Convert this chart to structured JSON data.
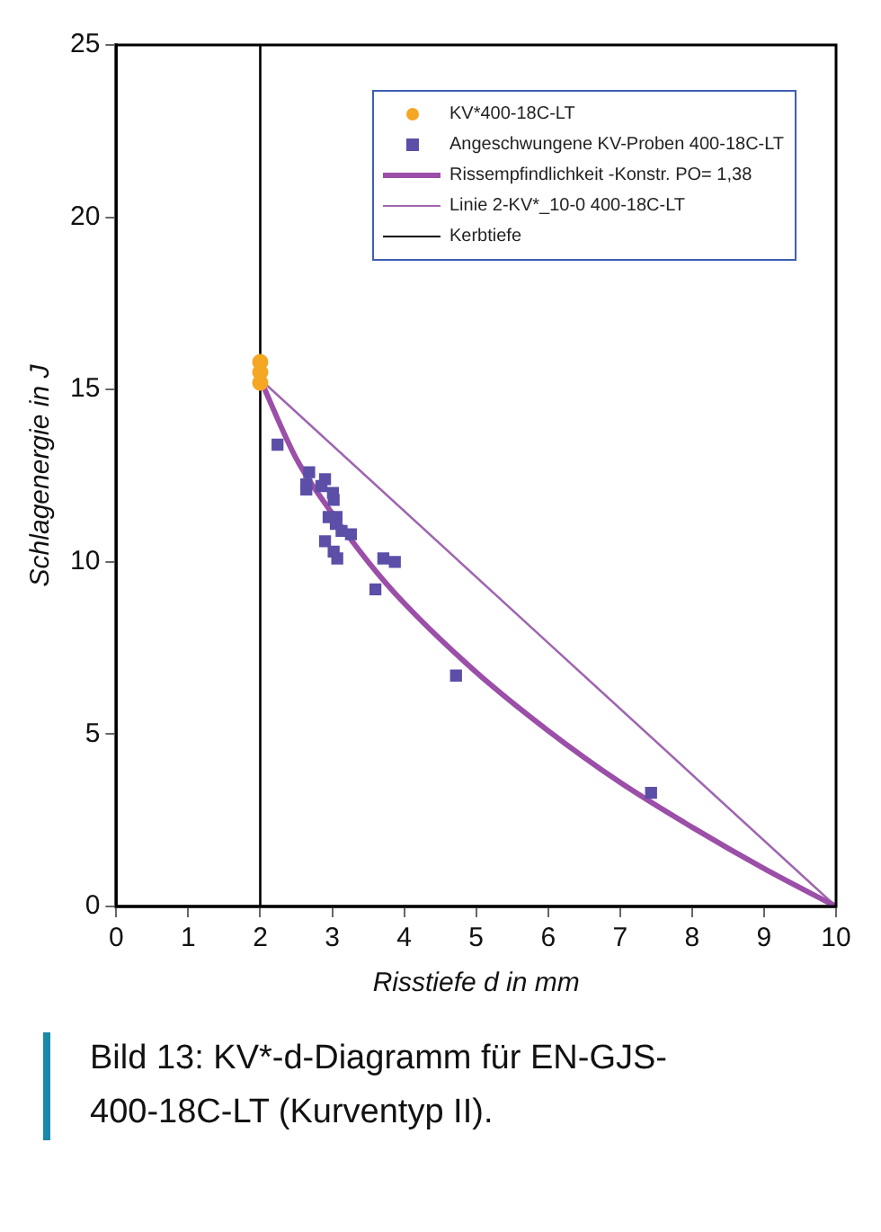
{
  "chart_data": {
    "type": "scatter",
    "xlabel": "Risstiefe d in mm",
    "ylabel": "Schlagenergie in J",
    "xlim": [
      0,
      10
    ],
    "ylim": [
      0,
      25
    ],
    "xticks": [
      0,
      1,
      2,
      3,
      4,
      5,
      6,
      7,
      8,
      9,
      10
    ],
    "yticks": [
      0,
      5,
      10,
      15,
      20,
      25
    ],
    "grid": false,
    "legend": "top",
    "series": [
      {
        "name": "KV*400-18C-LT",
        "type": "scatter",
        "marker": "circle",
        "color": "#f5a623",
        "x": [
          2,
          2,
          2
        ],
        "values": [
          15.8,
          15.5,
          15.2
        ]
      },
      {
        "name": "Angeschwungene KV-Proben 400-18C-LT",
        "type": "scatter",
        "marker": "square",
        "color": "#5b4fa8",
        "x": [
          2.24,
          2.68,
          2.9,
          2.64,
          2.85,
          2.64,
          3.01,
          3.02,
          2.95,
          3.06,
          3.05,
          3.13,
          3.26,
          2.9,
          3.02,
          3.07,
          3.71,
          3.87,
          3.6,
          4.72,
          7.43
        ],
        "values": [
          13.4,
          12.6,
          12.4,
          12.25,
          12.2,
          12.1,
          12.0,
          11.8,
          11.3,
          11.3,
          11.1,
          10.9,
          10.8,
          10.6,
          10.3,
          10.1,
          10.1,
          10.0,
          9.2,
          6.7,
          3.3
        ]
      },
      {
        "name": "Rissempfindlichkeit -Konstr. PO= 1,38",
        "type": "line",
        "marker": "none",
        "line_style": "solid",
        "color": "#9b4fa8",
        "x": [
          2,
          2.5,
          3,
          3.5,
          4,
          5,
          6,
          7,
          8,
          9,
          10
        ],
        "values": [
          15.3,
          13.0,
          11.4,
          10.0,
          8.8,
          6.8,
          5.1,
          3.6,
          2.3,
          1.1,
          0
        ]
      },
      {
        "name": "Linie 2-KV*_10-0  400-18C-LT",
        "type": "line",
        "marker": "none",
        "line_style": "solid",
        "color": "#a066b0",
        "x": [
          2,
          10
        ],
        "values": [
          15.3,
          0
        ]
      },
      {
        "name": "Kerbtiefe",
        "type": "line",
        "marker": "none",
        "line_style": "solid",
        "color": "#000000",
        "x": [
          2,
          2
        ],
        "values": [
          0,
          25
        ]
      }
    ],
    "annotations": [
      "Bild 13: KV*-d-Diagramm für EN-GJS-400-18C-LT (Kurventyp II)."
    ]
  }
}
